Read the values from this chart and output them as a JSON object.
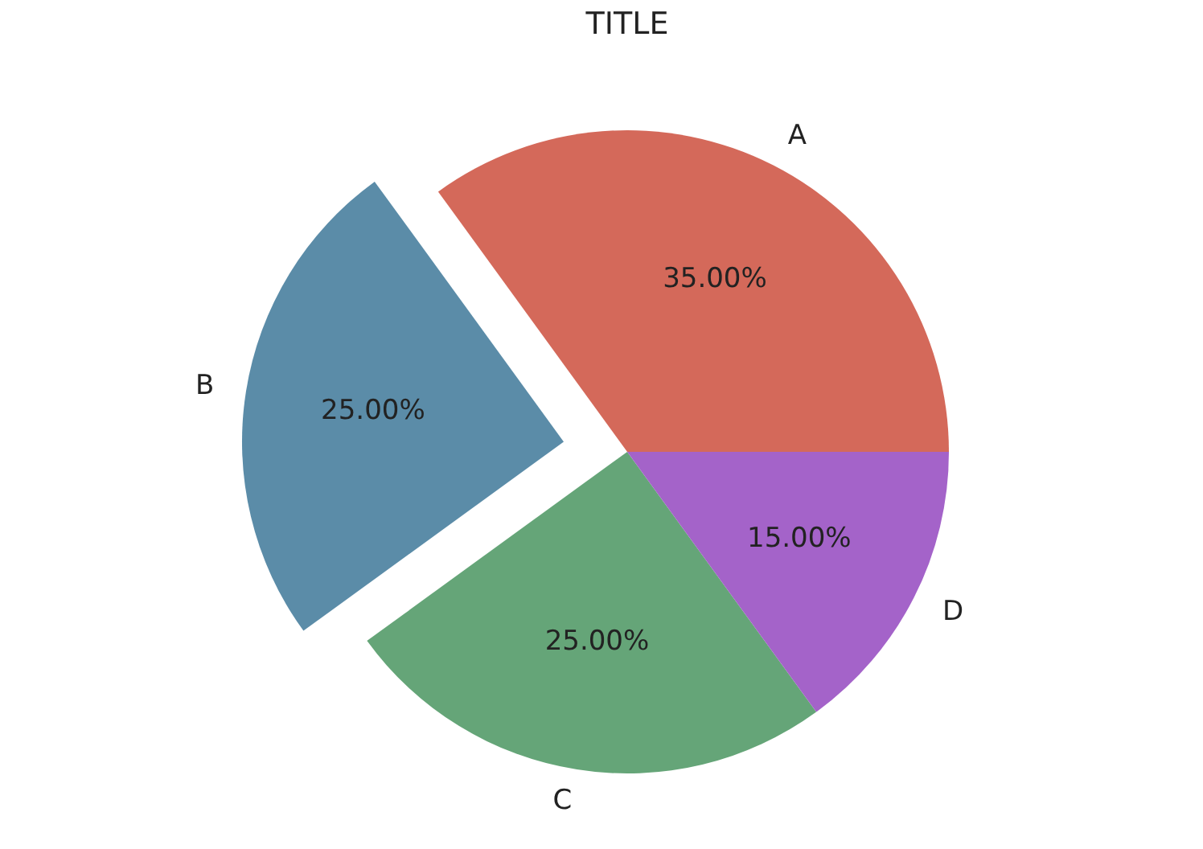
{
  "chart_data": {
    "type": "pie",
    "title": "TITLE",
    "categories": [
      "A",
      "B",
      "C",
      "D"
    ],
    "values": [
      35,
      25,
      25,
      15
    ],
    "colors": [
      "#d4695a",
      "#5b8ca8",
      "#65a578",
      "#a463c9"
    ],
    "value_labels": [
      "35.00%",
      "25.00%",
      "25.00%",
      "15.00%"
    ]
  }
}
